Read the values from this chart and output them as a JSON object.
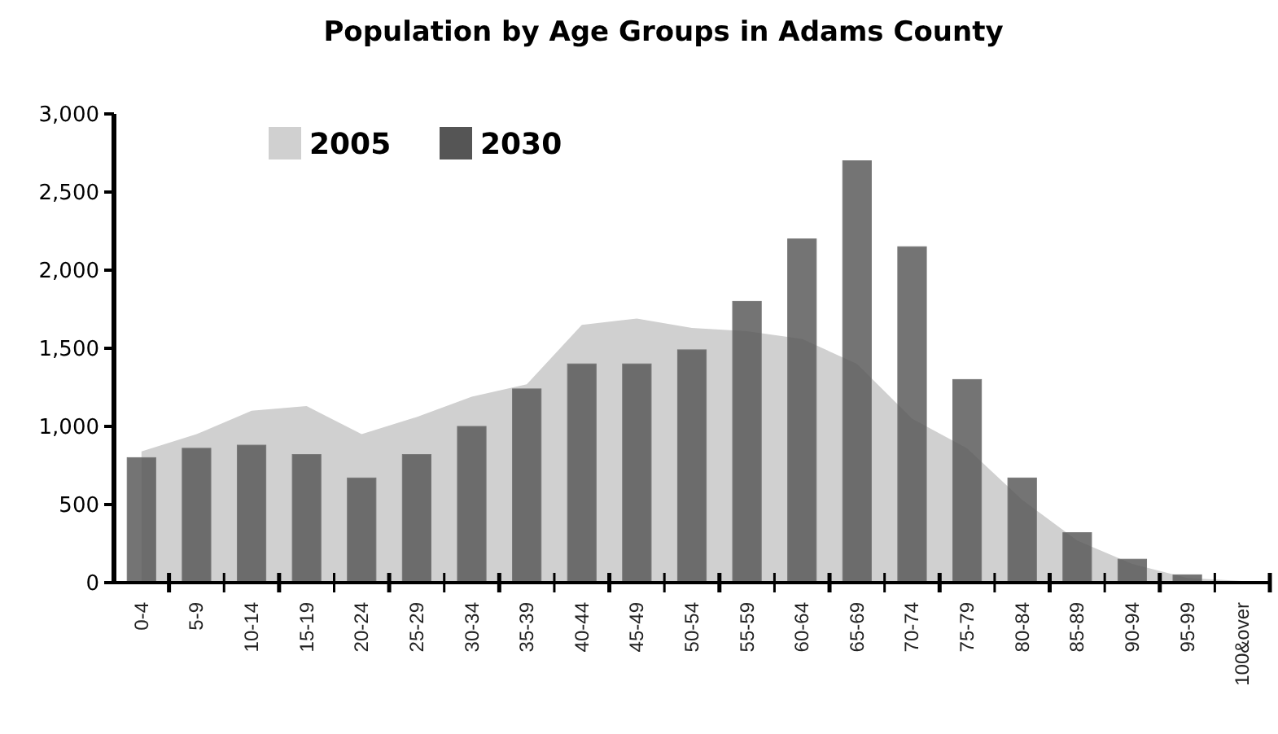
{
  "chart_data": {
    "type": "bar",
    "title": "Population by Age Groups in Adams County",
    "categories": [
      "0-4",
      "5-9",
      "10-14",
      "15-19",
      "20-24",
      "25-29",
      "30-34",
      "35-39",
      "40-44",
      "45-49",
      "50-54",
      "55-59",
      "60-64",
      "65-69",
      "70-74",
      "75-79",
      "80-84",
      "85-89",
      "90-94",
      "95-99",
      "100&over"
    ],
    "series": [
      {
        "name": "2005",
        "type": "area",
        "color": "#d0d0d0",
        "values": [
          840,
          950,
          1100,
          1130,
          950,
          1060,
          1190,
          1270,
          1650,
          1690,
          1630,
          1610,
          1560,
          1400,
          1050,
          860,
          530,
          270,
          120,
          30,
          10
        ]
      },
      {
        "name": "2030",
        "color": "#555555",
        "values": [
          800,
          860,
          880,
          820,
          670,
          820,
          1000,
          1240,
          1400,
          1400,
          1490,
          1800,
          2200,
          2700,
          2150,
          1300,
          670,
          320,
          150,
          50,
          0
        ]
      }
    ],
    "ylim": [
      0,
      3000
    ],
    "yticks": [
      {
        "value": 0,
        "label": "0"
      },
      {
        "value": 500,
        "label": "500"
      },
      {
        "value": 1000,
        "label": "1,000"
      },
      {
        "value": 1500,
        "label": "1,500"
      },
      {
        "value": 2000,
        "label": "2,000"
      },
      {
        "value": 2500,
        "label": "2,500"
      },
      {
        "value": 3000,
        "label": "3,000"
      }
    ],
    "legend": "top left",
    "grid": false
  }
}
